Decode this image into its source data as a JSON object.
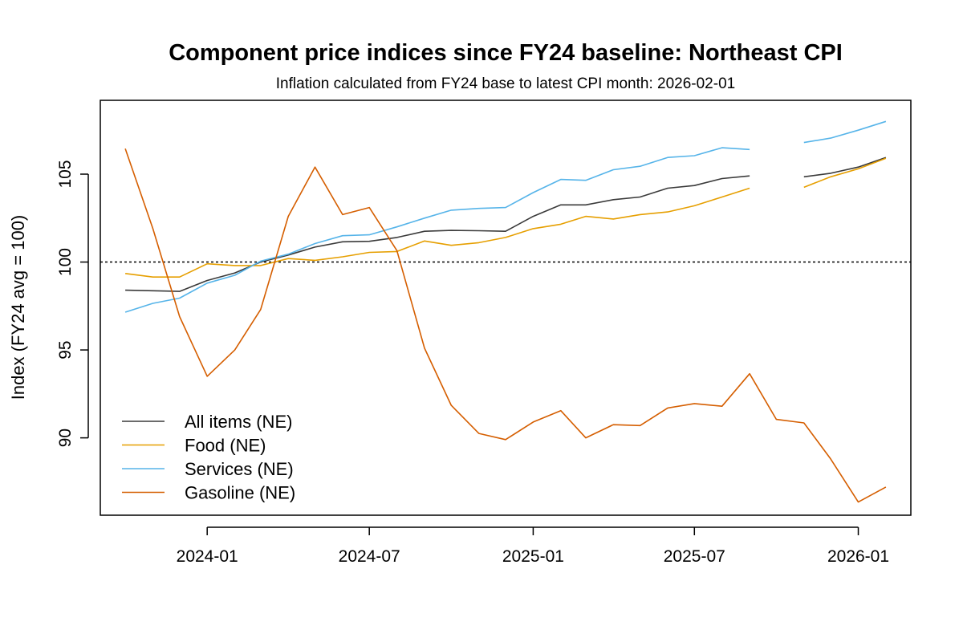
{
  "chart_data": {
    "type": "line",
    "title": "Component price indices since FY24 baseline: Northeast CPI",
    "subtitle": "Inflation calculated from FY24 base to latest CPI month: 2026-02-01",
    "xlabel": "",
    "ylabel": "Index (FY24 avg = 100)",
    "x": [
      "2023-10-01",
      "2023-11-01",
      "2023-12-01",
      "2024-01-01",
      "2024-02-01",
      "2024-03-01",
      "2024-04-01",
      "2024-05-01",
      "2024-06-01",
      "2024-07-01",
      "2024-08-01",
      "2024-09-01",
      "2024-10-01",
      "2024-11-01",
      "2024-12-01",
      "2025-01-01",
      "2025-02-01",
      "2025-03-01",
      "2025-04-01",
      "2025-05-01",
      "2025-06-01",
      "2025-07-01",
      "2025-08-01",
      "2025-09-01",
      "2025-10-01",
      "2025-11-01",
      "2025-12-01",
      "2026-01-01",
      "2026-02-01"
    ],
    "xlim": [
      "2023-09-03",
      "2026-03-01"
    ],
    "xticks": [
      "2024-01",
      "2024-07",
      "2025-01",
      "2025-07",
      "2026-01"
    ],
    "ylim": [
      85.6,
      109.2
    ],
    "yticks": [
      90,
      95,
      100,
      105
    ],
    "reference_line": 100,
    "grid": false,
    "legend_position": "bottom-left",
    "series": [
      {
        "name": "All items (NE)",
        "color": "#3a3a3a",
        "values": [
          98.4,
          98.37,
          98.33,
          98.95,
          99.38,
          100.0,
          100.4,
          100.85,
          101.15,
          101.18,
          101.4,
          101.75,
          101.8,
          101.78,
          101.75,
          102.6,
          103.25,
          103.25,
          103.55,
          103.7,
          104.2,
          104.35,
          104.75,
          104.9,
          null,
          104.85,
          105.05,
          105.4,
          105.95
        ]
      },
      {
        "name": "Food (NE)",
        "color": "#e69f00",
        "values": [
          99.35,
          99.15,
          99.15,
          99.9,
          99.8,
          99.8,
          100.2,
          100.1,
          100.3,
          100.55,
          100.6,
          101.2,
          100.95,
          101.1,
          101.4,
          101.9,
          102.15,
          102.6,
          102.45,
          102.7,
          102.85,
          103.2,
          103.7,
          104.2,
          null,
          104.25,
          104.85,
          105.3,
          105.9
        ]
      },
      {
        "name": "Services (NE)",
        "color": "#56b4e9",
        "values": [
          97.15,
          97.65,
          97.95,
          98.8,
          99.25,
          100.05,
          100.45,
          101.05,
          101.5,
          101.55,
          102.0,
          102.5,
          102.95,
          103.05,
          103.1,
          103.95,
          104.7,
          104.65,
          105.25,
          105.45,
          105.95,
          106.05,
          106.5,
          106.4,
          null,
          106.8,
          107.05,
          107.5,
          108.0
        ]
      },
      {
        "name": "Gasoline (NE)",
        "color": "#d55e00",
        "values": [
          106.45,
          101.9,
          96.9,
          93.5,
          95.0,
          97.3,
          102.6,
          105.4,
          102.7,
          103.1,
          100.65,
          95.1,
          91.85,
          90.25,
          89.9,
          90.9,
          91.55,
          90.0,
          90.75,
          90.7,
          91.7,
          91.95,
          91.8,
          93.65,
          91.05,
          90.85,
          88.8,
          86.35,
          87.2
        ]
      }
    ]
  }
}
